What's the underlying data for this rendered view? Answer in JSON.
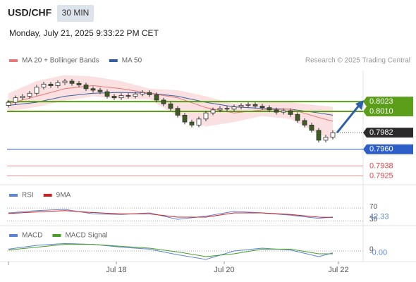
{
  "header": {
    "symbol": "USD/CHF",
    "timeframe": "30 MIN",
    "datetime": "Monday, July 21, 2025 9:33:22 PM CET",
    "source": "Research © 2025 Trading Central"
  },
  "chart_data": [
    {
      "type": "candlestick",
      "xlim": [
        0,
        50
      ],
      "ylim": [
        0.7917,
        0.8064
      ],
      "up_color": "#ffffff",
      "down_color": "#3d5c1f",
      "wick_color": "#333333",
      "candles": [
        [
          0.8018,
          0.8025,
          0.8015,
          0.8022
        ],
        [
          0.8022,
          0.8031,
          0.8019,
          0.8028
        ],
        [
          0.8028,
          0.8033,
          0.8025,
          0.803
        ],
        [
          0.803,
          0.8037,
          0.8027,
          0.8034
        ],
        [
          0.8034,
          0.8045,
          0.8031,
          0.8042
        ],
        [
          0.8042,
          0.8049,
          0.8039,
          0.8046
        ],
        [
          0.8046,
          0.8049,
          0.8041,
          0.8044
        ],
        [
          0.8044,
          0.8051,
          0.8041,
          0.8048
        ],
        [
          0.8048,
          0.8053,
          0.8045,
          0.805
        ],
        [
          0.805,
          0.8053,
          0.8044,
          0.8047
        ],
        [
          0.8047,
          0.805,
          0.8042,
          0.8045
        ],
        [
          0.8045,
          0.8048,
          0.8037,
          0.804
        ],
        [
          0.804,
          0.8043,
          0.8035,
          0.8038
        ],
        [
          0.8038,
          0.8041,
          0.8033,
          0.8036
        ],
        [
          0.8036,
          0.8039,
          0.8027,
          0.803
        ],
        [
          0.803,
          0.8033,
          0.8025,
          0.8028
        ],
        [
          0.8028,
          0.8034,
          0.8025,
          0.8031
        ],
        [
          0.8031,
          0.8034,
          0.8027,
          0.803
        ],
        [
          0.803,
          0.8036,
          0.8027,
          0.8033
        ],
        [
          0.8033,
          0.8038,
          0.803,
          0.8035
        ],
        [
          0.8035,
          0.8038,
          0.8029,
          0.8032
        ],
        [
          0.8032,
          0.8035,
          0.8022,
          0.8025
        ],
        [
          0.8025,
          0.8028,
          0.8017,
          0.802
        ],
        [
          0.802,
          0.8023,
          0.8011,
          0.8014
        ],
        [
          0.8014,
          0.8017,
          0.8002,
          0.8005
        ],
        [
          0.8005,
          0.8008,
          0.7993,
          0.7996
        ],
        [
          0.7996,
          0.7999,
          0.7989,
          0.7992
        ],
        [
          0.7992,
          0.8003,
          0.7989,
          0.8
        ],
        [
          0.8,
          0.8011,
          0.7997,
          0.8008
        ],
        [
          0.8008,
          0.8015,
          0.8005,
          0.8012
        ],
        [
          0.8012,
          0.8017,
          0.8009,
          0.8014
        ],
        [
          0.8014,
          0.8017,
          0.801,
          0.8013
        ],
        [
          0.8013,
          0.8019,
          0.801,
          0.8016
        ],
        [
          0.8016,
          0.8021,
          0.8013,
          0.8018
        ],
        [
          0.8018,
          0.8022,
          0.8015,
          0.8019
        ],
        [
          0.8019,
          0.8022,
          0.8014,
          0.8017
        ],
        [
          0.8017,
          0.802,
          0.8012,
          0.8015
        ],
        [
          0.8015,
          0.8018,
          0.8009,
          0.8012
        ],
        [
          0.8012,
          0.8015,
          0.8006,
          0.8009
        ],
        [
          0.8009,
          0.8014,
          0.8006,
          0.8011
        ],
        [
          0.8011,
          0.8014,
          0.8003,
          0.8006
        ],
        [
          0.8006,
          0.8009,
          0.7995,
          0.7998
        ],
        [
          0.7998,
          0.8001,
          0.7989,
          0.7992
        ],
        [
          0.7992,
          0.7995,
          0.7982,
          0.7985
        ],
        [
          0.7985,
          0.7988,
          0.7969,
          0.7972
        ],
        [
          0.7972,
          0.7979,
          0.7969,
          0.7976
        ],
        [
          0.7976,
          0.7985,
          0.7973,
          0.7982
        ]
      ],
      "x": [
        0,
        4,
        8,
        12,
        16,
        20,
        24,
        28,
        32,
        36,
        40,
        44,
        46
      ],
      "series": [
        {
          "name": "MA 20 + Bollinger Bands",
          "color": "#e87878",
          "band_color": "#f8d3d3",
          "values": [
            0.802,
            0.803,
            0.804,
            0.8044,
            0.804,
            0.8034,
            0.8028,
            0.8015,
            0.8008,
            0.8012,
            0.8013,
            0.8002,
            0.7997
          ],
          "upper": [
            0.8034,
            0.805,
            0.8058,
            0.8056,
            0.805,
            0.804,
            0.8038,
            0.803,
            0.802,
            0.8022,
            0.8022,
            0.8018,
            0.8016
          ],
          "lower": [
            0.801,
            0.8016,
            0.8024,
            0.803,
            0.8026,
            0.8026,
            0.8004,
            0.799,
            0.7996,
            0.8004,
            0.8,
            0.798,
            0.7973
          ]
        },
        {
          "name": "MA 50",
          "color": "#3a5f9e",
          "values": [
            0.8018,
            0.8022,
            0.803,
            0.8034,
            0.8035,
            0.8034,
            0.803,
            0.8022,
            0.8016,
            0.8014,
            0.8013,
            0.8008,
            0.8005
          ]
        }
      ],
      "levels": [
        {
          "value": 0.8023,
          "label": "0.8023",
          "color": "#5a9e1a",
          "style": "box",
          "line": "solid"
        },
        {
          "value": 0.801,
          "label": "0.8010",
          "color": "#5a9e1a",
          "style": "box",
          "line": "solid"
        },
        {
          "value": 0.7982,
          "label": "0.7982",
          "color": "#2b2b2b",
          "style": "box",
          "line": "dotted"
        },
        {
          "value": 0.796,
          "label": "0.7960",
          "color": "#2e5fc7",
          "style": "box",
          "line": "solid"
        },
        {
          "value": 0.7938,
          "label": "0.7938",
          "color": "#e34545",
          "style": "text",
          "line": "thin"
        },
        {
          "value": 0.7925,
          "label": "0.7925",
          "color": "#e34545",
          "style": "text",
          "line": "thin"
        }
      ],
      "xticks": [
        {
          "value": 15.3,
          "label": "Jul 18"
        },
        {
          "value": 30.6,
          "label": "Jul 20"
        },
        {
          "value": 46.8,
          "label": "Jul 22"
        }
      ]
    },
    {
      "type": "line",
      "xlim": [
        0,
        50
      ],
      "ylim": [
        20,
        90
      ],
      "yticks": [
        70,
        30
      ],
      "current": 42.33,
      "x": [
        0,
        4,
        8,
        12,
        16,
        20,
        24,
        28,
        32,
        36,
        40,
        44,
        46
      ],
      "series": [
        {
          "name": "RSI",
          "color": "#5b84d6",
          "values": [
            55,
            62,
            66,
            52,
            50,
            55,
            35,
            45,
            60,
            55,
            48,
            38,
            42.33
          ]
        },
        {
          "name": "9MA",
          "color": "#d42020",
          "values": [
            53,
            58,
            62,
            56,
            52,
            52,
            42,
            42,
            55,
            55,
            50,
            42,
            41
          ]
        }
      ]
    },
    {
      "type": "line",
      "xlim": [
        0,
        50
      ],
      "ylim": [
        -0.0012,
        0.0012
      ],
      "yticks": [
        0
      ],
      "current": {
        "value": -0.0002,
        "label": "-0.00"
      },
      "x": [
        0,
        4,
        8,
        12,
        16,
        20,
        24,
        28,
        32,
        36,
        40,
        44,
        46
      ],
      "series": [
        {
          "name": "MACD",
          "color": "#5b84d6",
          "values": [
            0.0002,
            0.0006,
            0.0008,
            0.0007,
            0.0004,
            0.0002,
            -0.0004,
            -0.0009,
            0,
            0.0003,
            0.0001,
            -0.0006,
            -0.0002
          ]
        },
        {
          "name": "MACD Signal",
          "color": "#4a9e2a",
          "values": [
            0.0001,
            0.0004,
            0.0007,
            0.0007,
            0.0005,
            0.0003,
            -0.0001,
            -0.0006,
            -0.0003,
            0.0002,
            0.0002,
            -0.0003,
            -0.0003
          ]
        }
      ]
    }
  ]
}
